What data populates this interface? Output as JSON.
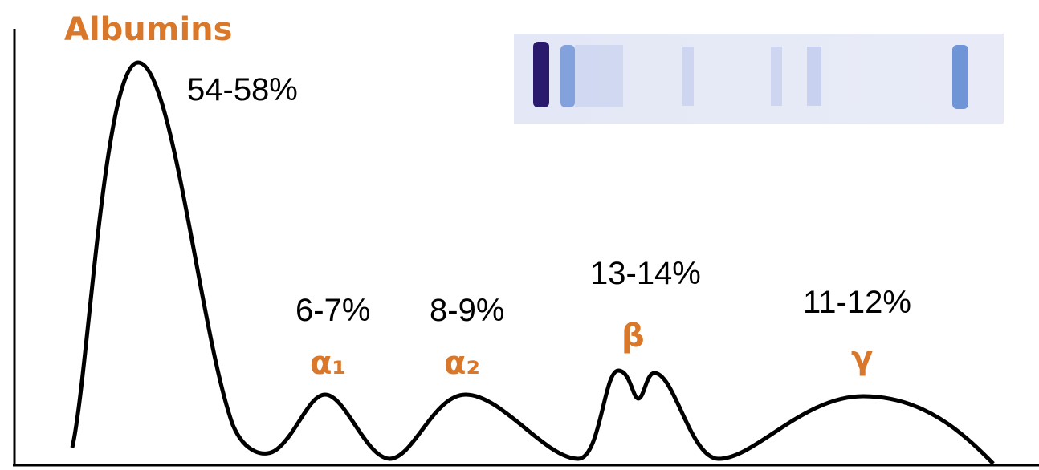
{
  "fractions": [
    {
      "label": "Albumins",
      "percent": "54-58%"
    },
    {
      "label": "α₁",
      "percent": "6-7%"
    },
    {
      "label": "α₂",
      "percent": "8-9%"
    },
    {
      "label": "β",
      "percent": "13-14%"
    },
    {
      "label": "γ",
      "percent": "11-12%"
    }
  ]
}
